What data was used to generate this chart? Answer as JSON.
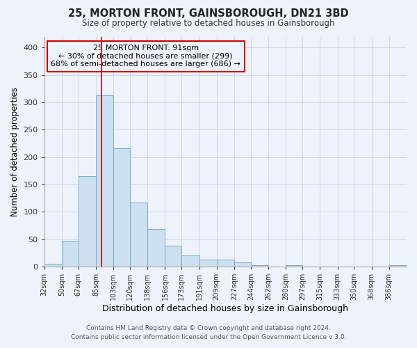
{
  "title": "25, MORTON FRONT, GAINSBOROUGH, DN21 3BD",
  "subtitle": "Size of property relative to detached houses in Gainsborough",
  "xlabel": "Distribution of detached houses by size in Gainsborough",
  "ylabel": "Number of detached properties",
  "footer_line1": "Contains HM Land Registry data © Crown copyright and database right 2024.",
  "footer_line2": "Contains public sector information licensed under the Open Government Licence v 3.0.",
  "bar_labels": [
    "32sqm",
    "50sqm",
    "67sqm",
    "85sqm",
    "103sqm",
    "120sqm",
    "138sqm",
    "156sqm",
    "173sqm",
    "191sqm",
    "209sqm",
    "227sqm",
    "244sqm",
    "262sqm",
    "280sqm",
    "297sqm",
    "315sqm",
    "333sqm",
    "350sqm",
    "368sqm",
    "386sqm"
  ],
  "bar_values": [
    5,
    47,
    165,
    313,
    216,
    117,
    69,
    38,
    20,
    13,
    13,
    7,
    2,
    0,
    2,
    0,
    0,
    0,
    0,
    0,
    2
  ],
  "bar_color": "#cce0f0",
  "bar_edge_color": "#7aaccc",
  "bg_color": "#eef2fa",
  "grid_color": "#d0d8e8",
  "property_line_x": 91,
  "property_line_color": "#cc0000",
  "annotation_text": "25 MORTON FRONT: 91sqm\n← 30% of detached houses are smaller (299)\n68% of semi-detached houses are larger (686) →",
  "annotation_box_color": "#cc0000",
  "ylim": [
    0,
    420
  ],
  "bin_edges": [
    32,
    50,
    67,
    85,
    103,
    120,
    138,
    156,
    173,
    191,
    209,
    227,
    244,
    262,
    280,
    297,
    315,
    333,
    350,
    368,
    386,
    404
  ]
}
